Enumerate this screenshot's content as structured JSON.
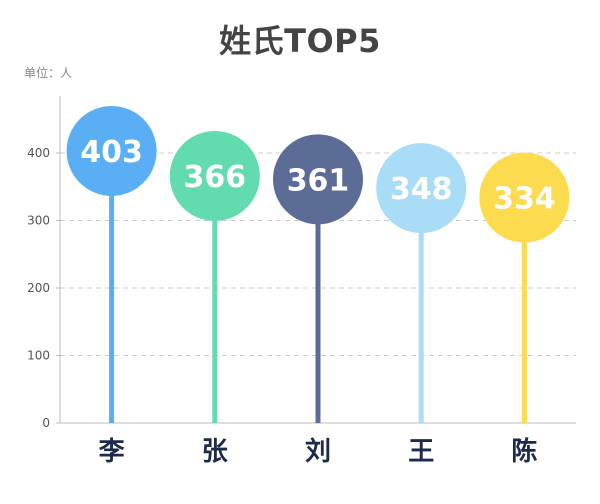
{
  "chart_data": {
    "type": "bar",
    "title": "姓氏TOP5",
    "unit_label": "单位：人",
    "categories": [
      "李",
      "张",
      "刘",
      "王",
      "陈"
    ],
    "values": [
      403,
      366,
      361,
      348,
      334
    ],
    "colors": [
      "#5aaef4",
      "#62dbae",
      "#5b6c96",
      "#a8dcf7",
      "#fddb4e"
    ],
    "yticks": [
      0,
      100,
      200,
      300,
      400
    ],
    "ylim": [
      0,
      400
    ],
    "grid": true
  }
}
